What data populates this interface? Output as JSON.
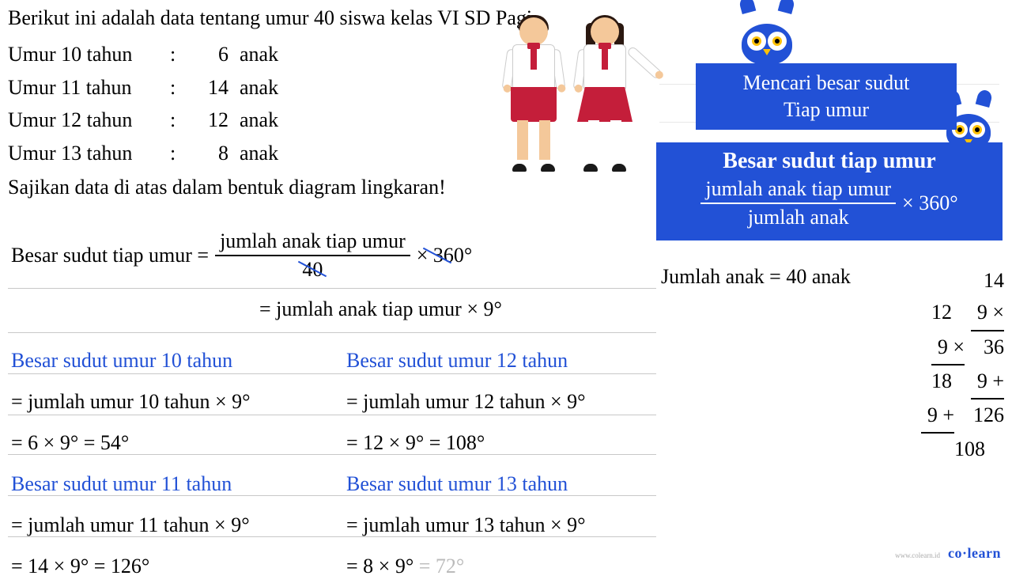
{
  "intro": "Berikut ini adalah data tentang umur 40 siswa kelas VI SD Pagi.",
  "data_rows": [
    {
      "label": "Umur 10 tahun",
      "count": "6",
      "unit": "anak"
    },
    {
      "label": "Umur 11 tahun",
      "count": "14",
      "unit": "anak"
    },
    {
      "label": "Umur 12 tahun",
      "count": "12",
      "unit": "anak"
    },
    {
      "label": "Umur 13 tahun",
      "count": "8",
      "unit": "anak"
    }
  ],
  "instruction": "Sajikan data di atas dalam bentuk diagram lingkaran!",
  "blue_box1_line1": "Mencari besar sudut",
  "blue_box1_line2": "Tiap umur",
  "blue_box2_title": "Besar sudut tiap umur",
  "blue_box2_num": "jumlah anak tiap umur",
  "blue_box2_den": "jumlah anak",
  "blue_box2_mult": "× 360°",
  "main_formula_label": "Besar sudut tiap umur =",
  "main_formula_num": "jumlah anak tiap umur",
  "main_formula_den": "40",
  "main_formula_mult": "× 360°",
  "main_formula2": "= jumlah anak tiap umur × 9°",
  "jumlah_anak": "Jumlah anak = 40 anak",
  "calc": {
    "c10_title": "Besar sudut umur 10 tahun",
    "c10_l1": "= jumlah umur 10 tahun × 9°",
    "c10_l2": "= 6 × 9° = 54°",
    "c11_title": "Besar sudut umur 11 tahun",
    "c11_l1": "= jumlah umur 11 tahun × 9°",
    "c11_l2": "= 14 × 9° = 126°",
    "c12_title": "Besar sudut umur 12 tahun",
    "c12_l1": "= jumlah umur 12 tahun × 9°",
    "c12_l2": "= 12 × 9° = 108°",
    "c13_title": "Besar sudut umur 13 tahun",
    "c13_l1": "= jumlah umur 13 tahun × 9°",
    "c13_l2_a": "= 8 × 9° ",
    "c13_l2_b": "= 72°"
  },
  "side": {
    "r1a": "14",
    "r2a": "12",
    "r2b": "9 ×",
    "r3a": "9 ×",
    "r3b": "36",
    "r4a": "18",
    "r4b": "9  +",
    "r5a": "9  +",
    "r5b": "126",
    "r6a": "108"
  },
  "logo_small": "www.colearn.id",
  "logo": "co·learn",
  "colors": {
    "blue": "#2251d6",
    "text": "#000000",
    "faded": "#bbbbbb",
    "bg": "#ffffff",
    "red": "#c41e3a",
    "skin": "#f4c89a",
    "hair": "#2a1810",
    "yellow": "#ffc107"
  }
}
